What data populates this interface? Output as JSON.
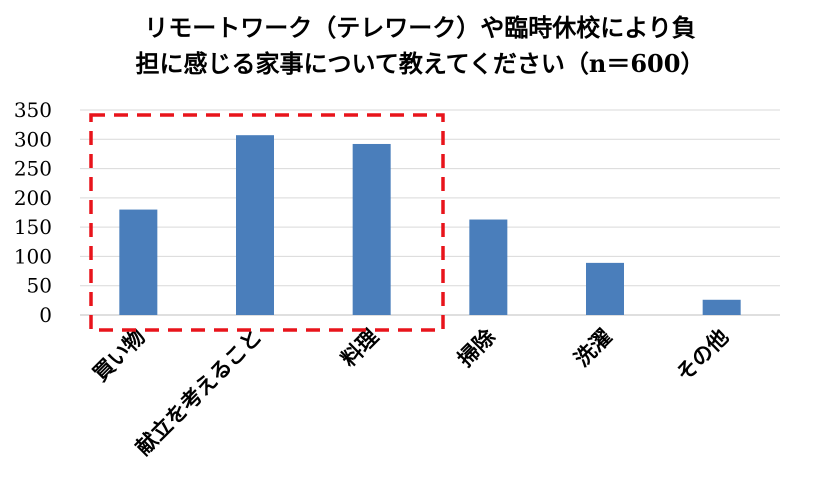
{
  "chart_data": {
    "type": "bar",
    "title_lines": [
      "リモートワーク（テレワーク）や臨時休校により負",
      "担に感じる家事について教えてください（n＝600）"
    ],
    "categories": [
      "買い物",
      "献立を考えること",
      "料理",
      "掃除",
      "洗濯",
      "その他"
    ],
    "values": [
      180,
      307,
      292,
      163,
      89,
      26
    ],
    "ylim": [
      0,
      350
    ],
    "yticks": [
      "0",
      "50",
      "100",
      "150",
      "200",
      "250",
      "300",
      "350"
    ],
    "grid": true,
    "bar_color": "#4a7ebb",
    "highlight": {
      "categories": [
        "買い物",
        "献立を考えること",
        "料理"
      ],
      "color": "#e8141b",
      "style": "dashed"
    }
  }
}
